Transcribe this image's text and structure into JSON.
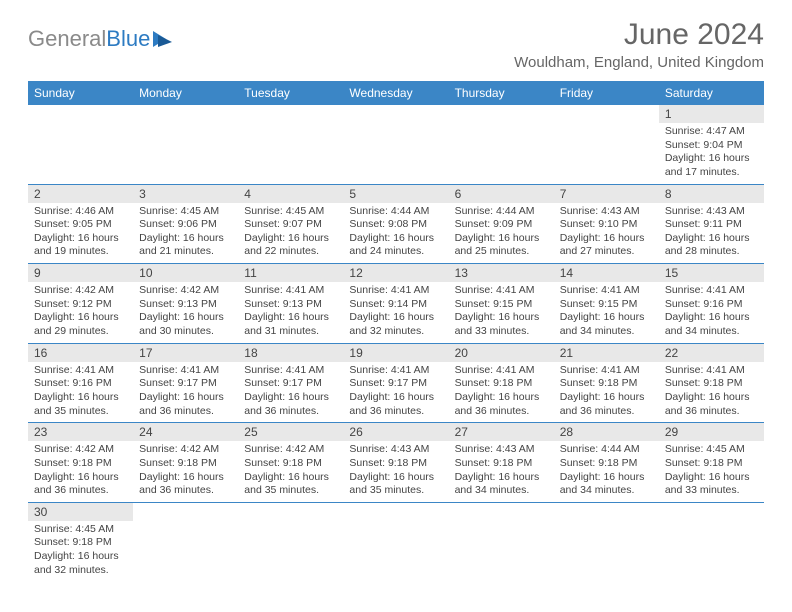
{
  "logo": {
    "text1": "General",
    "text2": "Blue"
  },
  "title": "June 2024",
  "location": "Wouldham, England, United Kingdom",
  "colors": {
    "header_blue": "#3b86c6",
    "daynum_bg": "#e8e8e8",
    "text": "#444444",
    "title_gray": "#666666",
    "logo_gray": "#8a8a8a",
    "logo_blue": "#2d7bc2"
  },
  "weekdays": [
    "Sunday",
    "Monday",
    "Tuesday",
    "Wednesday",
    "Thursday",
    "Friday",
    "Saturday"
  ],
  "weeks": [
    [
      null,
      null,
      null,
      null,
      null,
      null,
      {
        "n": "1",
        "sr": "4:47 AM",
        "ss": "9:04 PM",
        "dl": "16 hours and 17 minutes."
      }
    ],
    [
      {
        "n": "2",
        "sr": "4:46 AM",
        "ss": "9:05 PM",
        "dl": "16 hours and 19 minutes."
      },
      {
        "n": "3",
        "sr": "4:45 AM",
        "ss": "9:06 PM",
        "dl": "16 hours and 21 minutes."
      },
      {
        "n": "4",
        "sr": "4:45 AM",
        "ss": "9:07 PM",
        "dl": "16 hours and 22 minutes."
      },
      {
        "n": "5",
        "sr": "4:44 AM",
        "ss": "9:08 PM",
        "dl": "16 hours and 24 minutes."
      },
      {
        "n": "6",
        "sr": "4:44 AM",
        "ss": "9:09 PM",
        "dl": "16 hours and 25 minutes."
      },
      {
        "n": "7",
        "sr": "4:43 AM",
        "ss": "9:10 PM",
        "dl": "16 hours and 27 minutes."
      },
      {
        "n": "8",
        "sr": "4:43 AM",
        "ss": "9:11 PM",
        "dl": "16 hours and 28 minutes."
      }
    ],
    [
      {
        "n": "9",
        "sr": "4:42 AM",
        "ss": "9:12 PM",
        "dl": "16 hours and 29 minutes."
      },
      {
        "n": "10",
        "sr": "4:42 AM",
        "ss": "9:13 PM",
        "dl": "16 hours and 30 minutes."
      },
      {
        "n": "11",
        "sr": "4:41 AM",
        "ss": "9:13 PM",
        "dl": "16 hours and 31 minutes."
      },
      {
        "n": "12",
        "sr": "4:41 AM",
        "ss": "9:14 PM",
        "dl": "16 hours and 32 minutes."
      },
      {
        "n": "13",
        "sr": "4:41 AM",
        "ss": "9:15 PM",
        "dl": "16 hours and 33 minutes."
      },
      {
        "n": "14",
        "sr": "4:41 AM",
        "ss": "9:15 PM",
        "dl": "16 hours and 34 minutes."
      },
      {
        "n": "15",
        "sr": "4:41 AM",
        "ss": "9:16 PM",
        "dl": "16 hours and 34 minutes."
      }
    ],
    [
      {
        "n": "16",
        "sr": "4:41 AM",
        "ss": "9:16 PM",
        "dl": "16 hours and 35 minutes."
      },
      {
        "n": "17",
        "sr": "4:41 AM",
        "ss": "9:17 PM",
        "dl": "16 hours and 36 minutes."
      },
      {
        "n": "18",
        "sr": "4:41 AM",
        "ss": "9:17 PM",
        "dl": "16 hours and 36 minutes."
      },
      {
        "n": "19",
        "sr": "4:41 AM",
        "ss": "9:17 PM",
        "dl": "16 hours and 36 minutes."
      },
      {
        "n": "20",
        "sr": "4:41 AM",
        "ss": "9:18 PM",
        "dl": "16 hours and 36 minutes."
      },
      {
        "n": "21",
        "sr": "4:41 AM",
        "ss": "9:18 PM",
        "dl": "16 hours and 36 minutes."
      },
      {
        "n": "22",
        "sr": "4:41 AM",
        "ss": "9:18 PM",
        "dl": "16 hours and 36 minutes."
      }
    ],
    [
      {
        "n": "23",
        "sr": "4:42 AM",
        "ss": "9:18 PM",
        "dl": "16 hours and 36 minutes."
      },
      {
        "n": "24",
        "sr": "4:42 AM",
        "ss": "9:18 PM",
        "dl": "16 hours and 36 minutes."
      },
      {
        "n": "25",
        "sr": "4:42 AM",
        "ss": "9:18 PM",
        "dl": "16 hours and 35 minutes."
      },
      {
        "n": "26",
        "sr": "4:43 AM",
        "ss": "9:18 PM",
        "dl": "16 hours and 35 minutes."
      },
      {
        "n": "27",
        "sr": "4:43 AM",
        "ss": "9:18 PM",
        "dl": "16 hours and 34 minutes."
      },
      {
        "n": "28",
        "sr": "4:44 AM",
        "ss": "9:18 PM",
        "dl": "16 hours and 34 minutes."
      },
      {
        "n": "29",
        "sr": "4:45 AM",
        "ss": "9:18 PM",
        "dl": "16 hours and 33 minutes."
      }
    ],
    [
      {
        "n": "30",
        "sr": "4:45 AM",
        "ss": "9:18 PM",
        "dl": "16 hours and 32 minutes."
      },
      null,
      null,
      null,
      null,
      null,
      null
    ]
  ],
  "labels": {
    "sunrise": "Sunrise:",
    "sunset": "Sunset:",
    "daylight": "Daylight:"
  }
}
